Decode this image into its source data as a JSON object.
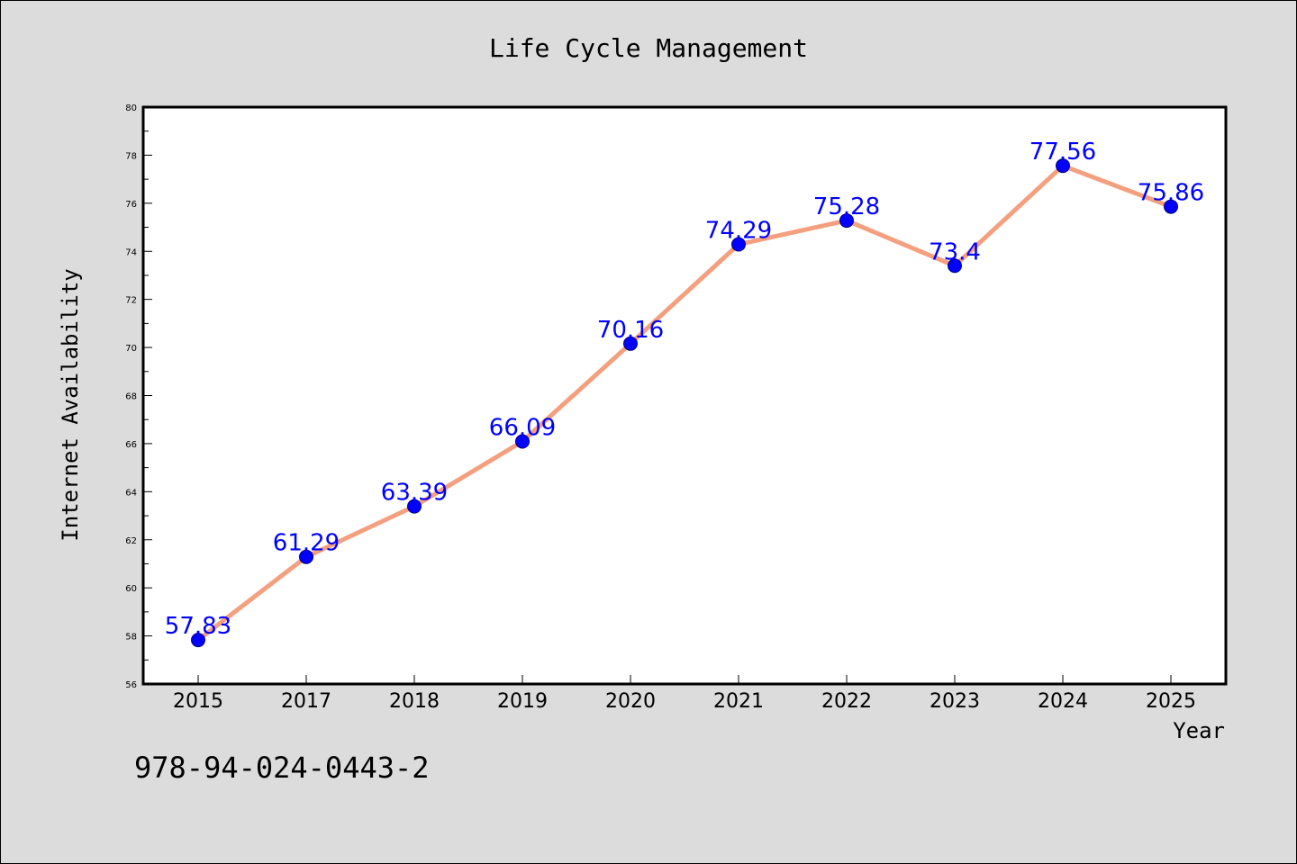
{
  "chart_data": {
    "type": "line",
    "title": "Life Cycle Management",
    "xlabel": "Year",
    "ylabel": "Internet Availability",
    "categories": [
      "2015",
      "2017",
      "2018",
      "2019",
      "2020",
      "2021",
      "2022",
      "2023",
      "2024",
      "2025"
    ],
    "series": [
      {
        "values": [
          57.83,
          61.29,
          63.39,
          66.09,
          70.16,
          74.29,
          75.28,
          73.4,
          77.56,
          75.86
        ]
      }
    ],
    "data_labels": [
      "57.83",
      "61.29",
      "63.39",
      "66.09",
      "70.16",
      "74.29",
      "75.28",
      "73.4",
      "77.56",
      "75.86"
    ],
    "ylim": [
      56,
      80
    ],
    "yticks": [
      "56",
      "58",
      "60",
      "62",
      "64",
      "66",
      "68",
      "70",
      "72",
      "74",
      "76",
      "78",
      "80"
    ],
    "grid": false,
    "legend": "none",
    "annotation": "978-94-024-0443-2",
    "colors": {
      "line": "#f4a07f",
      "marker": "#0000ff",
      "marker_edge": "#000080",
      "data_label": "#0000ff",
      "background": "#dcdcdc",
      "plot_background": "#ffffff"
    }
  }
}
